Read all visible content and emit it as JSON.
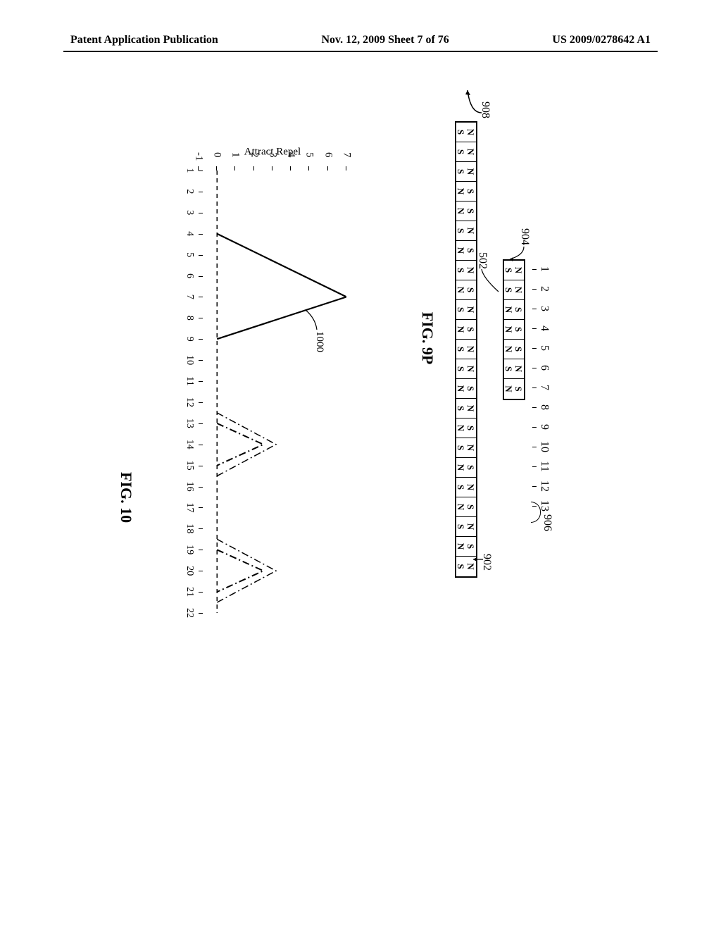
{
  "header": {
    "left": "Patent Application Publication",
    "center": "Nov. 12, 2009  Sheet 7 of 76",
    "right": "US 2009/0278642 A1"
  },
  "fig9p": {
    "caption": "FIG. 9P",
    "scale_labels": [
      "1",
      "2",
      "3",
      "4",
      "5",
      "6",
      "7",
      "8",
      "9",
      "10",
      "11",
      "12",
      "13"
    ],
    "top_row": [
      "NS",
      "NS",
      "SN",
      "SN",
      "SN",
      "NS",
      "SN"
    ],
    "bot_row": [
      "NS",
      "NS",
      "NS",
      "SN",
      "SN",
      "NS",
      "SN",
      "NS",
      "SN",
      "NS",
      "SN",
      "NS",
      "NS",
      "SN",
      "NS",
      "SN",
      "NS",
      "SN",
      "NS",
      "SN",
      "NS",
      "SN",
      "NS"
    ],
    "ref_906": "906",
    "ref_904": "904",
    "ref_902": "902",
    "ref_502": "502",
    "ref_908": "908"
  },
  "fig10": {
    "caption": "FIG. 10",
    "y_label": "Attract    Repel",
    "y_ticks": [
      "-1",
      "0",
      "1",
      "2",
      "3",
      "4",
      "5",
      "6",
      "7"
    ],
    "x_ticks": [
      "1",
      "2",
      "3",
      "4",
      "5",
      "6",
      "7",
      "8",
      "9",
      "10",
      "11",
      "12",
      "13",
      "14",
      "15",
      "16",
      "17",
      "18",
      "19",
      "20",
      "21",
      "22"
    ],
    "ref_1000": "1000",
    "series": {
      "type": "line",
      "color": "#000000",
      "zero_line_style": "dashed",
      "main_linewidth": 2,
      "side_lobe_style": "dash-dot",
      "ylim": [
        -1,
        7
      ],
      "xlim": [
        1,
        22
      ],
      "main_peak_x": 7,
      "main_peak_y": 7,
      "side_peak1_x": 14,
      "side_peak1_y": 2.5,
      "side_peak2_x": 20,
      "side_peak2_y": 2.5
    }
  },
  "colors": {
    "text": "#000000",
    "background": "#ffffff"
  }
}
